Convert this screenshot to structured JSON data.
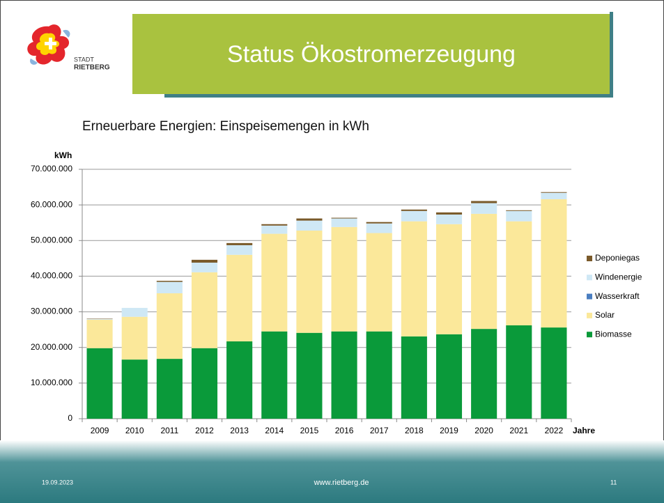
{
  "slide": {
    "title": "Status Ökostromerzeugung",
    "logo_text": [
      "STADT",
      "RIETBERG"
    ],
    "date": "19.09.2023",
    "website": "www.rietberg.de",
    "page": "11"
  },
  "chart_data": {
    "type": "bar",
    "stacked": true,
    "title": "Erneuerbare Energien: Einspeisemengen in kWh",
    "y_label": "kWh",
    "x_label": "Jahre",
    "categories": [
      "2009",
      "2010",
      "2011",
      "2012",
      "2013",
      "2014",
      "2015",
      "2016",
      "2017",
      "2018",
      "2019",
      "2020",
      "2021",
      "2022"
    ],
    "series": [
      {
        "name": "Biomasse",
        "color": "#0a9a3a",
        "values": [
          19800000,
          16600000,
          16800000,
          19800000,
          21700000,
          24500000,
          24100000,
          24500000,
          24500000,
          23100000,
          23700000,
          25200000,
          26200000,
          25600000
        ]
      },
      {
        "name": "Solar",
        "color": "#fbe89a",
        "values": [
          8000000,
          12000000,
          18400000,
          21300000,
          24300000,
          27400000,
          28700000,
          29300000,
          27600000,
          32300000,
          30900000,
          32300000,
          29200000,
          36000000
        ]
      },
      {
        "name": "Wasserkraft",
        "color": "#4a7ec0",
        "values": [
          0,
          0,
          0,
          0,
          0,
          0,
          0,
          0,
          0,
          0,
          0,
          0,
          0,
          0
        ]
      },
      {
        "name": "Windenergie",
        "color": "#cfe8f5",
        "values": [
          200000,
          2500000,
          3200000,
          2700000,
          2700000,
          2300000,
          2800000,
          2400000,
          2700000,
          2900000,
          2700000,
          3000000,
          2900000,
          1800000
        ]
      },
      {
        "name": "Deponiegas",
        "color": "#7a5a2a",
        "values": [
          100000,
          0,
          300000,
          800000,
          600000,
          400000,
          600000,
          200000,
          400000,
          400000,
          600000,
          600000,
          200000,
          200000
        ]
      }
    ],
    "ylim": [
      0,
      70000000
    ],
    "yticks": [
      0,
      {
        "value": 10000000,
        "label": "10.000.000"
      },
      {
        "value": 20000000,
        "label": "20.000.000"
      },
      {
        "value": 30000000,
        "label": "30.000.000"
      },
      {
        "value": 40000000,
        "label": "40.000.000"
      },
      {
        "value": 50000000,
        "label": "50.000.000"
      },
      {
        "value": 60000000,
        "label": "60.000.000"
      },
      {
        "value": 70000000,
        "label": "70.000.000"
      }
    ],
    "grid": true,
    "legend": "right"
  }
}
